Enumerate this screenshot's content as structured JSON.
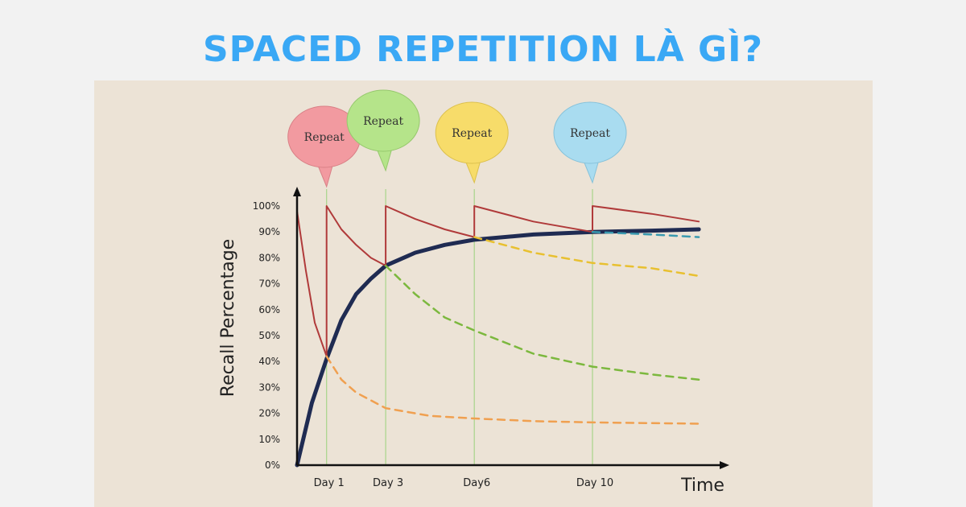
{
  "headline": "SPACED REPETITION LÀ GÌ?",
  "colors": {
    "headline": "#3aa8f5",
    "panel": "#ece3d6",
    "recall_line": "#1f2b52",
    "forgetting_curve": "#b03a3a",
    "guide_line": "#a8d48a"
  },
  "chart_data": {
    "type": "line",
    "ylabel": "Recall Percentage",
    "xlabel": "Time",
    "y_ticks": [
      "100%",
      "90%",
      "80%",
      "70%",
      "60%",
      "50%",
      "40%",
      "30%",
      "20%",
      "10%",
      "0%"
    ],
    "x_ticks": [
      {
        "label": "Day 1",
        "x": 1
      },
      {
        "label": "Day 3",
        "x": 3
      },
      {
        "label": "Day6",
        "x": 6
      },
      {
        "label": "Day 10",
        "x": 10
      }
    ],
    "ylim": [
      0,
      100
    ],
    "xlim": [
      0,
      13.5
    ],
    "bubbles": [
      {
        "label": "Repeat",
        "x": 1,
        "color": "#f29aa0",
        "stroke": "#d98086"
      },
      {
        "label": "Repeat",
        "x": 3,
        "color": "#b5e48a",
        "stroke": "#95c86c"
      },
      {
        "label": "Repeat",
        "x": 6,
        "color": "#f7dc6a",
        "stroke": "#dcc04c"
      },
      {
        "label": "Repeat",
        "x": 10,
        "color": "#a9dcf0",
        "stroke": "#86c2da"
      }
    ],
    "series": [
      {
        "style": "thick",
        "color": "#1f2b52",
        "points": [
          [
            0,
            0
          ],
          [
            0.5,
            24
          ],
          [
            1,
            41
          ],
          [
            1.5,
            56
          ],
          [
            2,
            66
          ],
          [
            2.5,
            72
          ],
          [
            3,
            77
          ],
          [
            4,
            82
          ],
          [
            5,
            85
          ],
          [
            6,
            87
          ],
          [
            8,
            89
          ],
          [
            10,
            90
          ],
          [
            12,
            90.5
          ],
          [
            13.6,
            91
          ]
        ]
      },
      {
        "style": "solid",
        "color": "#b03a3a",
        "points": [
          [
            0,
            98
          ],
          [
            0.3,
            75
          ],
          [
            0.6,
            55
          ],
          [
            1,
            42
          ],
          [
            1,
            100
          ],
          [
            1.5,
            91
          ],
          [
            2,
            85
          ],
          [
            2.5,
            80
          ],
          [
            3,
            77
          ],
          [
            3,
            100
          ],
          [
            4,
            95
          ],
          [
            5,
            91
          ],
          [
            6,
            88
          ],
          [
            6,
            100
          ],
          [
            8,
            94
          ],
          [
            10,
            90
          ],
          [
            10,
            100
          ],
          [
            12,
            97
          ],
          [
            13.6,
            94
          ]
        ]
      },
      {
        "style": "dashed",
        "color": "#f0a050",
        "points": [
          [
            1,
            42
          ],
          [
            1.5,
            33
          ],
          [
            2,
            28
          ],
          [
            3,
            22
          ],
          [
            4.5,
            19
          ],
          [
            6,
            18
          ],
          [
            8,
            17
          ],
          [
            10,
            16.5
          ],
          [
            13.6,
            16
          ]
        ]
      },
      {
        "style": "dashed",
        "color": "#7cb83e",
        "points": [
          [
            3,
            77
          ],
          [
            4,
            66
          ],
          [
            5,
            57
          ],
          [
            6,
            52
          ],
          [
            8,
            43
          ],
          [
            10,
            38
          ],
          [
            12,
            35
          ],
          [
            13.6,
            33
          ]
        ]
      },
      {
        "style": "dashed",
        "color": "#e8c030",
        "points": [
          [
            6,
            88
          ],
          [
            7,
            85
          ],
          [
            8,
            82
          ],
          [
            9,
            80
          ],
          [
            10,
            78
          ],
          [
            12,
            76
          ],
          [
            13.6,
            73
          ]
        ]
      },
      {
        "style": "dashed",
        "color": "#3a9ab0",
        "points": [
          [
            10,
            90
          ],
          [
            12,
            89
          ],
          [
            13.6,
            88
          ]
        ]
      }
    ]
  }
}
